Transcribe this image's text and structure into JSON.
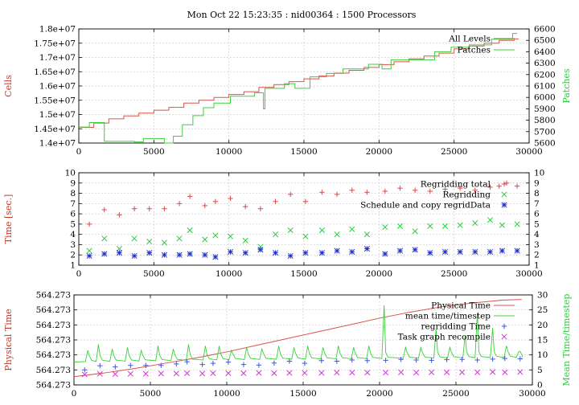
{
  "figure": {
    "title": "Mon Oct 22 15:23:35 : nid00364 : 1500 Processors"
  },
  "colors": {
    "red": "#d9534f",
    "green": "#3ccf3c",
    "plus_red": "#e0474c",
    "cross_green": "#2ecc40",
    "star_blue": "#1f2fcf",
    "plus_blue": "#4455dd",
    "cross_magenta": "#d03ad0"
  },
  "chart_data": [
    {
      "type": "line",
      "ylabel": "Cells",
      "y2label": "Patches",
      "xlim": [
        0,
        30000
      ],
      "ylim": [
        14000000,
        18000000
      ],
      "y2lim": [
        5600,
        6600
      ],
      "xticks": [
        0,
        5000,
        10000,
        15000,
        20000,
        25000,
        30000
      ],
      "xtick_labels": [
        "0",
        "5000",
        "10000",
        "15000",
        "20000",
        "25000",
        "30000"
      ],
      "yticks": [
        14000000,
        14500000,
        15000000,
        15500000,
        16000000,
        16500000,
        17000000,
        17500000,
        18000000
      ],
      "ytick_labels": [
        "1.4e+07",
        "1.45e+07",
        "1.5e+07",
        "1.55e+07",
        "1.6e+07",
        "1.65e+07",
        "1.7e+07",
        "1.75e+07",
        "1.8e+07"
      ],
      "y2ticks": [
        5600,
        5700,
        5800,
        5900,
        6000,
        6100,
        6200,
        6300,
        6400,
        6500,
        6600
      ],
      "y2tick_labels": [
        "5600",
        "5700",
        "5800",
        "5900",
        "6000",
        "6100",
        "6200",
        "6300",
        "6400",
        "6500",
        "6600"
      ],
      "grid": true,
      "legend_position": "top-right",
      "series": [
        {
          "name": "All Levels",
          "axis": "left",
          "style": "step",
          "color": "red",
          "x": [
            0,
            1000,
            2000,
            3000,
            4000,
            5000,
            6000,
            7000,
            8000,
            9000,
            10000,
            11000,
            12000,
            13000,
            14000,
            15000,
            16000,
            17000,
            18000,
            19000,
            20000,
            21000,
            22000,
            23000,
            24000,
            25000,
            26000,
            27000,
            28000,
            29000
          ],
          "y": [
            14550000,
            14700000,
            14850000,
            14950000,
            15050000,
            15150000,
            15250000,
            15400000,
            15500000,
            15600000,
            15700000,
            15800000,
            15950000,
            16050000,
            16150000,
            16250000,
            16350000,
            16450000,
            16550000,
            16650000,
            16750000,
            16850000,
            16950000,
            17050000,
            17150000,
            17300000,
            17400000,
            17500000,
            17600000,
            17650000
          ]
        },
        {
          "name": "Patches",
          "axis": "right",
          "style": "step",
          "color": "green",
          "x": [
            0,
            700,
            1700,
            3700,
            4300,
            5700,
            6300,
            6900,
            7600,
            8300,
            9000,
            10100,
            11700,
            12300,
            12400,
            13700,
            14400,
            15400,
            16500,
            17600,
            18700,
            19300,
            20200,
            20800,
            22200,
            23700,
            24800,
            26000,
            27500,
            28900
          ],
          "y": [
            5740,
            5780,
            5615,
            5610,
            5640,
            5600,
            5660,
            5760,
            5840,
            5910,
            5950,
            6010,
            6040,
            5900,
            6080,
            6120,
            6080,
            6180,
            6210,
            6250,
            6250,
            6290,
            6250,
            6330,
            6330,
            6400,
            6440,
            6460,
            6510,
            6560
          ]
        }
      ]
    },
    {
      "type": "scatter",
      "ylabel": "Time [sec.]",
      "xlim": [
        0,
        30000
      ],
      "ylim": [
        1,
        10
      ],
      "y2lim": [
        1,
        10
      ],
      "xticks": [
        0,
        5000,
        10000,
        15000,
        20000,
        25000,
        30000
      ],
      "xtick_labels": [
        "0",
        "5000",
        "10000",
        "15000",
        "20000",
        "25000",
        "30000"
      ],
      "yticks": [
        1,
        2,
        3,
        4,
        5,
        6,
        7,
        8,
        9,
        10
      ],
      "ytick_labels": [
        "1",
        "2",
        "3",
        "4",
        "5",
        "6",
        "7",
        "8",
        "9",
        "10"
      ],
      "y2ticks": [
        1,
        2,
        3,
        4,
        5,
        6,
        7,
        8,
        9,
        10
      ],
      "y2tick_labels": [
        "1",
        "2",
        "3",
        "4",
        "5",
        "6",
        "7",
        "8",
        "9",
        "10"
      ],
      "grid": true,
      "legend_position": "top-right",
      "series": [
        {
          "name": "Regridding total",
          "marker": "plus",
          "color": "plus_red",
          "x": [
            700,
            1700,
            2700,
            3700,
            4700,
            5700,
            6700,
            7400,
            8400,
            9100,
            10100,
            11100,
            12100,
            13100,
            14100,
            15100,
            16200,
            17200,
            18200,
            19200,
            20400,
            21400,
            22400,
            23400,
            24400,
            25400,
            26400,
            27400,
            28000,
            28500,
            29200
          ],
          "y": [
            5.0,
            6.4,
            5.9,
            6.5,
            6.5,
            6.5,
            7.0,
            7.7,
            6.8,
            7.2,
            7.5,
            6.7,
            6.5,
            7.2,
            7.9,
            7.2,
            8.1,
            7.9,
            8.3,
            8.1,
            8.2,
            8.5,
            8.3,
            8.2,
            8.4,
            8.5,
            8.3,
            8.6,
            8.7,
            9.0,
            8.7
          ]
        },
        {
          "name": "Regridding",
          "marker": "cross",
          "color": "cross_green",
          "x": [
            700,
            1700,
            2700,
            3700,
            4700,
            5700,
            6700,
            7400,
            8400,
            9100,
            10100,
            11100,
            12100,
            13100,
            14100,
            15100,
            16200,
            17200,
            18200,
            19200,
            20400,
            21400,
            22400,
            23400,
            24400,
            25400,
            26400,
            27400,
            28200,
            29200
          ],
          "y": [
            2.4,
            3.6,
            2.6,
            3.6,
            3.3,
            3.2,
            3.6,
            4.4,
            3.5,
            3.9,
            3.8,
            3.4,
            2.8,
            4.0,
            4.4,
            3.8,
            4.4,
            4.0,
            4.5,
            4.0,
            4.7,
            4.8,
            4.3,
            4.8,
            4.8,
            4.9,
            5.1,
            5.4,
            4.9,
            5.0
          ]
        },
        {
          "name": "Schedule and copy regridData",
          "marker": "star",
          "color": "star_blue",
          "x": [
            700,
            1700,
            2700,
            3700,
            4700,
            5700,
            6700,
            7400,
            8400,
            9100,
            10100,
            11100,
            12100,
            13100,
            14100,
            15100,
            16200,
            17200,
            18200,
            19200,
            20400,
            21400,
            22400,
            23400,
            24400,
            25400,
            26400,
            27400,
            28200,
            29200
          ],
          "y": [
            1.9,
            2.1,
            2.2,
            1.9,
            2.2,
            2.0,
            2.0,
            2.1,
            2.0,
            1.8,
            2.3,
            2.2,
            2.5,
            2.2,
            1.9,
            2.2,
            2.2,
            2.4,
            2.3,
            2.6,
            2.1,
            2.4,
            2.5,
            2.2,
            2.3,
            2.3,
            2.3,
            2.3,
            2.4,
            2.4
          ]
        }
      ]
    },
    {
      "type": "line",
      "ylabel": "Physical Time",
      "y2label": "Mean Time/timestep",
      "xlim": [
        0,
        30000
      ],
      "ylim": [
        0,
        6
      ],
      "y2lim": [
        0,
        30
      ],
      "xticks": [
        0,
        5000,
        10000,
        15000,
        20000,
        25000,
        30000
      ],
      "xtick_labels": [
        "0",
        "5000",
        "10000",
        "15000",
        "20000",
        "25000",
        "30000"
      ],
      "yticks": [
        0,
        1,
        2,
        3,
        4,
        5,
        6
      ],
      "ytick_labels": [
        "564.273",
        "564.273",
        "564.273",
        "564.273",
        "564.273",
        "564.273",
        "564.273"
      ],
      "y2ticks": [
        0,
        5,
        10,
        15,
        20,
        25,
        30
      ],
      "y2tick_labels": [
        "0",
        "5",
        "10",
        "15",
        "20",
        "25",
        "30"
      ],
      "grid": true,
      "legend_position": "top-right",
      "series": [
        {
          "name": "Physical Time",
          "axis": "left",
          "style": "line",
          "color": "red",
          "x": [
            0,
            2000,
            4000,
            6000,
            8000,
            10000,
            12000,
            14000,
            16000,
            18000,
            20000,
            22000,
            24000,
            26000,
            28000,
            29300
          ],
          "y": [
            0.55,
            0.8,
            1.1,
            1.45,
            1.8,
            2.2,
            2.65,
            3.1,
            3.55,
            4.0,
            4.45,
            4.85,
            5.2,
            5.45,
            5.65,
            5.7
          ]
        },
        {
          "name": "mean time/timestep",
          "axis": "right",
          "style": "line",
          "color": "green",
          "baseline": [
            [
              0,
              7.6
            ],
            [
              1000,
              7.8
            ],
            [
              5000,
              8.0
            ],
            [
              10000,
              8.4
            ],
            [
              15000,
              8.6
            ],
            [
              20000,
              8.8
            ],
            [
              25000,
              9.0
            ],
            [
              29300,
              9.2
            ]
          ],
          "spikes": [
            [
              900,
              11.5
            ],
            [
              1600,
              13.5
            ],
            [
              2500,
              12.0
            ],
            [
              3500,
              12.5
            ],
            [
              4400,
              11.5
            ],
            [
              5500,
              13.0
            ],
            [
              6500,
              12.0
            ],
            [
              7500,
              13.5
            ],
            [
              8600,
              13.0
            ],
            [
              9500,
              13.0
            ],
            [
              10300,
              11.5
            ],
            [
              11300,
              12.5
            ],
            [
              12300,
              12.0
            ],
            [
              13400,
              13.0
            ],
            [
              14400,
              12.5
            ],
            [
              15300,
              13.0
            ],
            [
              16300,
              12.5
            ],
            [
              17300,
              13.0
            ],
            [
              18300,
              12.5
            ],
            [
              19300,
              13.0
            ],
            [
              20300,
              26.5
            ],
            [
              21700,
              12.5
            ],
            [
              22700,
              12.5
            ],
            [
              23700,
              18.5
            ],
            [
              24600,
              12.5
            ],
            [
              25600,
              16.5
            ],
            [
              26400,
              24.0
            ],
            [
              27400,
              19.0
            ],
            [
              28300,
              13.0
            ],
            [
              29100,
              11.0
            ]
          ]
        },
        {
          "name": "regridding Time",
          "axis": "right",
          "marker": "plus",
          "color": "plus_blue",
          "x": [
            700,
            1700,
            2700,
            3700,
            4700,
            5700,
            6700,
            7400,
            8400,
            9100,
            10100,
            11100,
            12100,
            13100,
            14100,
            15100,
            16200,
            17200,
            18200,
            19200,
            20400,
            21400,
            22400,
            23400,
            24400,
            25400,
            26400,
            27400,
            28200,
            29200
          ],
          "y": [
            5.0,
            6.4,
            6.0,
            6.5,
            6.5,
            6.5,
            7.0,
            7.7,
            6.8,
            7.2,
            7.6,
            6.8,
            6.6,
            7.3,
            7.9,
            7.2,
            8.1,
            7.9,
            8.3,
            8.1,
            8.2,
            8.5,
            8.3,
            8.2,
            8.4,
            8.5,
            8.3,
            8.6,
            8.8,
            8.7
          ]
        },
        {
          "name": "Task graph recompile",
          "axis": "right",
          "marker": "cross",
          "color": "cross_magenta",
          "x": [
            700,
            1700,
            2700,
            3700,
            4700,
            5700,
            6700,
            7400,
            8400,
            9100,
            10100,
            11100,
            12100,
            13100,
            14100,
            15100,
            16200,
            17200,
            18200,
            19200,
            20400,
            21400,
            22400,
            23400,
            24400,
            25400,
            26400,
            27400,
            28200,
            29200
          ],
          "y": [
            3.5,
            3.7,
            3.6,
            3.7,
            3.7,
            3.8,
            3.8,
            3.9,
            3.8,
            3.9,
            3.9,
            3.9,
            4.0,
            3.9,
            4.0,
            4.0,
            4.0,
            4.1,
            4.1,
            4.1,
            4.1,
            4.2,
            4.1,
            4.2,
            4.2,
            4.2,
            4.2,
            4.3,
            4.2,
            4.3
          ]
        }
      ]
    }
  ]
}
